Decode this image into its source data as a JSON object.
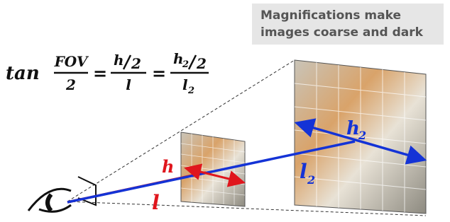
{
  "callout": {
    "lines": [
      "Magnifications make",
      "images coarse and dark"
    ]
  },
  "formula": {
    "function": "tan",
    "frac1": {
      "numerator": "FOV",
      "denominator": "2"
    },
    "equals": "=",
    "frac2": {
      "numerator": "h",
      "numerator_divisor": "2",
      "denominator": "l"
    },
    "frac3": {
      "numerator": "h",
      "numerator_sub": "2",
      "numerator_divisor": "2",
      "denominator": "l",
      "denominator_sub": "2"
    }
  },
  "labels": {
    "near_height": "h",
    "near_distance": "l",
    "far_height": {
      "base": "h",
      "sub": "2"
    },
    "far_distance": {
      "base": "l",
      "sub": "2"
    }
  }
}
